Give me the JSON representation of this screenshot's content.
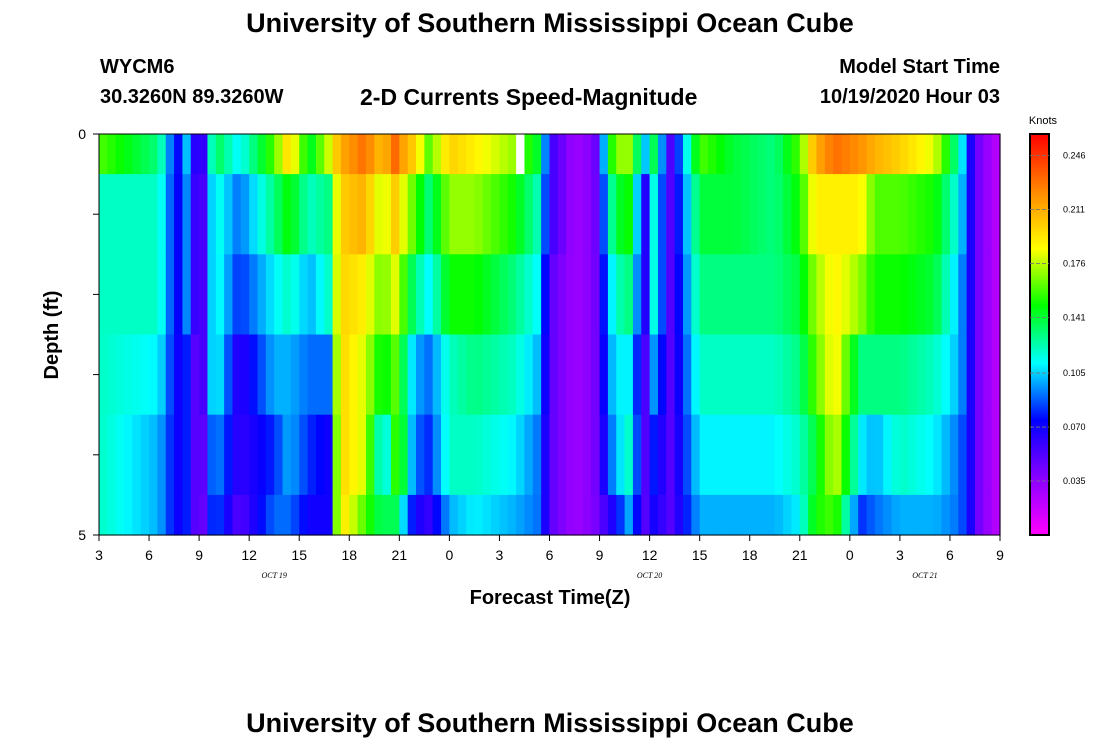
{
  "header": {
    "title": "University of Southern Mississippi Ocean Cube",
    "station_id": "WYCM6",
    "coordinates": "30.3260N 89.3260W",
    "chart_title": "2-D Currents Speed-Magnitude",
    "model_start_label": "Model Start Time",
    "model_start_value": "10/19/2020 Hour 03"
  },
  "footer": {
    "title": "University of Southern Mississippi Ocean Cube"
  },
  "chart_data": {
    "type": "heatmap",
    "title": "2-D Currents Speed-Magnitude",
    "xlabel": "Forecast Time(Z)",
    "ylabel": "Depth (ft)",
    "x_tick_labels": [
      "3",
      "6",
      "9",
      "12",
      "15",
      "18",
      "21",
      "0",
      "3",
      "6",
      "9",
      "12",
      "15",
      "18",
      "21",
      "0",
      "3",
      "6",
      "9"
    ],
    "date_labels": [
      {
        "text": "OCT 19",
        "tick_index": 3.5
      },
      {
        "text": "OCT 20",
        "tick_index": 11
      },
      {
        "text": "OCT 21",
        "tick_index": 16.5
      }
    ],
    "y_tick_labels": [
      "0",
      "5"
    ],
    "ylim": [
      0,
      5
    ],
    "depth_levels": 5,
    "hours_per_column": 0.5,
    "colorbar": {
      "title": "Knots",
      "min": 0,
      "max": 0.26,
      "tick_labels": [
        "0.246",
        "0.211",
        "0.176",
        "0.141",
        "0.105",
        "0.070",
        "0.035"
      ],
      "tick_values": [
        0.246,
        0.211,
        0.176,
        0.141,
        0.105,
        0.07,
        0.035
      ],
      "colors": [
        "#ff00ff",
        "#8800ff",
        "#0000ff",
        "#00ffff",
        "#00ff00",
        "#ffff00",
        "#ff8800",
        "#ff0000"
      ]
    },
    "missing_cells": [
      {
        "column": 50,
        "depth_row": 0
      }
    ],
    "speed_profiles": [
      {
        "time_index": 0,
        "values": [
          0.16,
          0.12,
          0.12,
          0.12,
          0.12,
          0.12
        ]
      },
      {
        "time_index": 1.2,
        "values": [
          0.13,
          0.12,
          0.12,
          0.11,
          0.1,
          0.1
        ]
      },
      {
        "time_index": 1.55,
        "values": [
          0.07,
          0.07,
          0.07,
          0.07,
          0.07,
          0.07
        ]
      },
      {
        "time_index": 1.8,
        "values": [
          0.11,
          0.1,
          0.1,
          0.08,
          0.08,
          0.08
        ]
      },
      {
        "time_index": 2.0,
        "values": [
          0.03,
          0.03,
          0.03,
          0.03,
          0.03,
          0.03
        ]
      },
      {
        "time_index": 2.3,
        "values": [
          0.14,
          0.12,
          0.12,
          0.12,
          0.1,
          0.09
        ]
      },
      {
        "time_index": 2.8,
        "values": [
          0.11,
          0.09,
          0.08,
          0.06,
          0.06,
          0.05
        ]
      },
      {
        "time_index": 3.5,
        "values": [
          0.16,
          0.13,
          0.11,
          0.1,
          0.08,
          0.09
        ]
      },
      {
        "time_index": 3.8,
        "values": [
          0.2,
          0.15,
          0.12,
          0.1,
          0.1,
          0.09
        ]
      },
      {
        "time_index": 4.2,
        "values": [
          0.14,
          0.12,
          0.1,
          0.09,
          0.08,
          0.07
        ]
      },
      {
        "time_index": 4.6,
        "values": [
          0.18,
          0.13,
          0.12,
          0.09,
          0.07,
          0.07
        ]
      },
      {
        "time_index": 4.8,
        "values": [
          0.21,
          0.2,
          0.2,
          0.2,
          0.2,
          0.2
        ]
      },
      {
        "time_index": 5.3,
        "values": [
          0.23,
          0.21,
          0.19,
          0.18,
          0.18,
          0.16
        ]
      },
      {
        "time_index": 5.7,
        "values": [
          0.2,
          0.17,
          0.16,
          0.14,
          0.1,
          0.13
        ]
      },
      {
        "time_index": 5.85,
        "values": [
          0.24,
          0.21,
          0.19,
          0.17,
          0.15,
          0.15
        ]
      },
      {
        "time_index": 6.0,
        "values": [
          0.22,
          0.19,
          0.17,
          0.15,
          0.16,
          0.12
        ]
      },
      {
        "time_index": 6.3,
        "values": [
          0.2,
          0.16,
          0.13,
          0.1,
          0.09,
          0.07
        ]
      },
      {
        "time_index": 6.6,
        "values": [
          0.16,
          0.13,
          0.11,
          0.09,
          0.08,
          0.06
        ]
      },
      {
        "time_index": 7.0,
        "values": [
          0.2,
          0.17,
          0.15,
          0.12,
          0.12,
          0.1
        ]
      },
      {
        "time_index": 7.5,
        "values": [
          0.19,
          0.17,
          0.15,
          0.13,
          0.12,
          0.11
        ]
      },
      {
        "time_index": 8.3,
        "values": [
          0.17,
          0.15,
          0.13,
          0.12,
          0.11,
          0.1
        ]
      },
      {
        "time_index": 8.8,
        "values": [
          0.14,
          0.12,
          0.11,
          0.1,
          0.09,
          0.09
        ]
      },
      {
        "time_index": 9.0,
        "values": [
          0.06,
          0.06,
          0.05,
          0.05,
          0.05,
          0.05
        ]
      },
      {
        "time_index": 9.5,
        "values": [
          0.03,
          0.03,
          0.03,
          0.03,
          0.03,
          0.03
        ]
      },
      {
        "time_index": 9.9,
        "values": [
          0.04,
          0.04,
          0.04,
          0.04,
          0.04,
          0.04
        ]
      },
      {
        "time_index": 10.3,
        "values": [
          0.17,
          0.14,
          0.12,
          0.11,
          0.1,
          0.07
        ]
      },
      {
        "time_index": 10.6,
        "values": [
          0.17,
          0.15,
          0.13,
          0.11,
          0.12,
          0.1
        ]
      },
      {
        "time_index": 10.9,
        "values": [
          0.1,
          0.06,
          0.06,
          0.05,
          0.05,
          0.05
        ]
      },
      {
        "time_index": 11.1,
        "values": [
          0.14,
          0.12,
          0.12,
          0.1,
          0.08,
          0.07
        ]
      },
      {
        "time_index": 11.4,
        "values": [
          0.05,
          0.05,
          0.05,
          0.05,
          0.05,
          0.05
        ]
      },
      {
        "time_index": 12.0,
        "values": [
          0.16,
          0.14,
          0.13,
          0.12,
          0.11,
          0.1
        ]
      },
      {
        "time_index": 12.7,
        "values": [
          0.14,
          0.14,
          0.13,
          0.12,
          0.11,
          0.1
        ]
      },
      {
        "time_index": 13.5,
        "values": [
          0.13,
          0.13,
          0.13,
          0.12,
          0.11,
          0.1
        ]
      },
      {
        "time_index": 14.0,
        "values": [
          0.16,
          0.15,
          0.14,
          0.13,
          0.12,
          0.11
        ]
      },
      {
        "time_index": 14.3,
        "values": [
          0.21,
          0.19,
          0.17,
          0.16,
          0.14,
          0.15
        ]
      },
      {
        "time_index": 14.7,
        "values": [
          0.23,
          0.19,
          0.19,
          0.19,
          0.18,
          0.16
        ]
      },
      {
        "time_index": 15.2,
        "values": [
          0.22,
          0.19,
          0.17,
          0.13,
          0.11,
          0.08
        ]
      },
      {
        "time_index": 15.5,
        "values": [
          0.21,
          0.16,
          0.15,
          0.13,
          0.1,
          0.09
        ]
      },
      {
        "time_index": 16.0,
        "values": [
          0.2,
          0.16,
          0.15,
          0.13,
          0.12,
          0.1
        ]
      },
      {
        "time_index": 16.7,
        "values": [
          0.18,
          0.15,
          0.14,
          0.12,
          0.11,
          0.1
        ]
      },
      {
        "time_index": 17.2,
        "values": [
          0.12,
          0.11,
          0.1,
          0.1,
          0.09,
          0.09
        ]
      },
      {
        "time_index": 17.4,
        "values": [
          0.07,
          0.07,
          0.07,
          0.07,
          0.07,
          0.07
        ]
      },
      {
        "time_index": 17.6,
        "values": [
          0.04,
          0.04,
          0.04,
          0.04,
          0.04,
          0.04
        ]
      },
      {
        "time_index": 18.0,
        "values": [
          0.02,
          0.02,
          0.02,
          0.02,
          0.02,
          0.02
        ]
      }
    ]
  }
}
